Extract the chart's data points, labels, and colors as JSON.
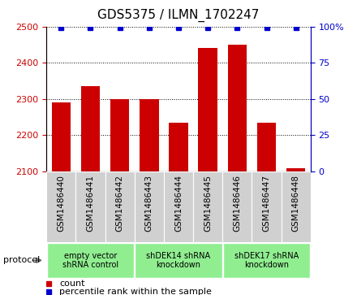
{
  "title": "GDS5375 / ILMN_1702247",
  "categories": [
    "GSM1486440",
    "GSM1486441",
    "GSM1486442",
    "GSM1486443",
    "GSM1486444",
    "GSM1486445",
    "GSM1486446",
    "GSM1486447",
    "GSM1486448"
  ],
  "counts": [
    2290,
    2335,
    2300,
    2300,
    2235,
    2440,
    2450,
    2235,
    2108
  ],
  "percentile_ranks": [
    99,
    99,
    99,
    99,
    99,
    99,
    99,
    99,
    99
  ],
  "ylim_left": [
    2100,
    2500
  ],
  "ylim_right": [
    0,
    100
  ],
  "bar_color": "#cc0000",
  "dot_color": "#0000cc",
  "tick_color_left": "#cc0000",
  "tick_color_right": "#0000cc",
  "grey_box_color": "#d0d0d0",
  "green_box_color": "#90ee90",
  "groups": [
    {
      "label": "empty vector\nshRNA control",
      "start": 0,
      "end": 3
    },
    {
      "label": "shDEK14 shRNA\nknockdown",
      "start": 3,
      "end": 6
    },
    {
      "label": "shDEK17 shRNA\nknockdown",
      "start": 6,
      "end": 9
    }
  ],
  "protocol_label": "protocol",
  "legend_count": "count",
  "legend_percentile": "percentile rank within the sample",
  "title_fontsize": 11,
  "tick_fontsize": 8,
  "label_fontsize": 7.5
}
